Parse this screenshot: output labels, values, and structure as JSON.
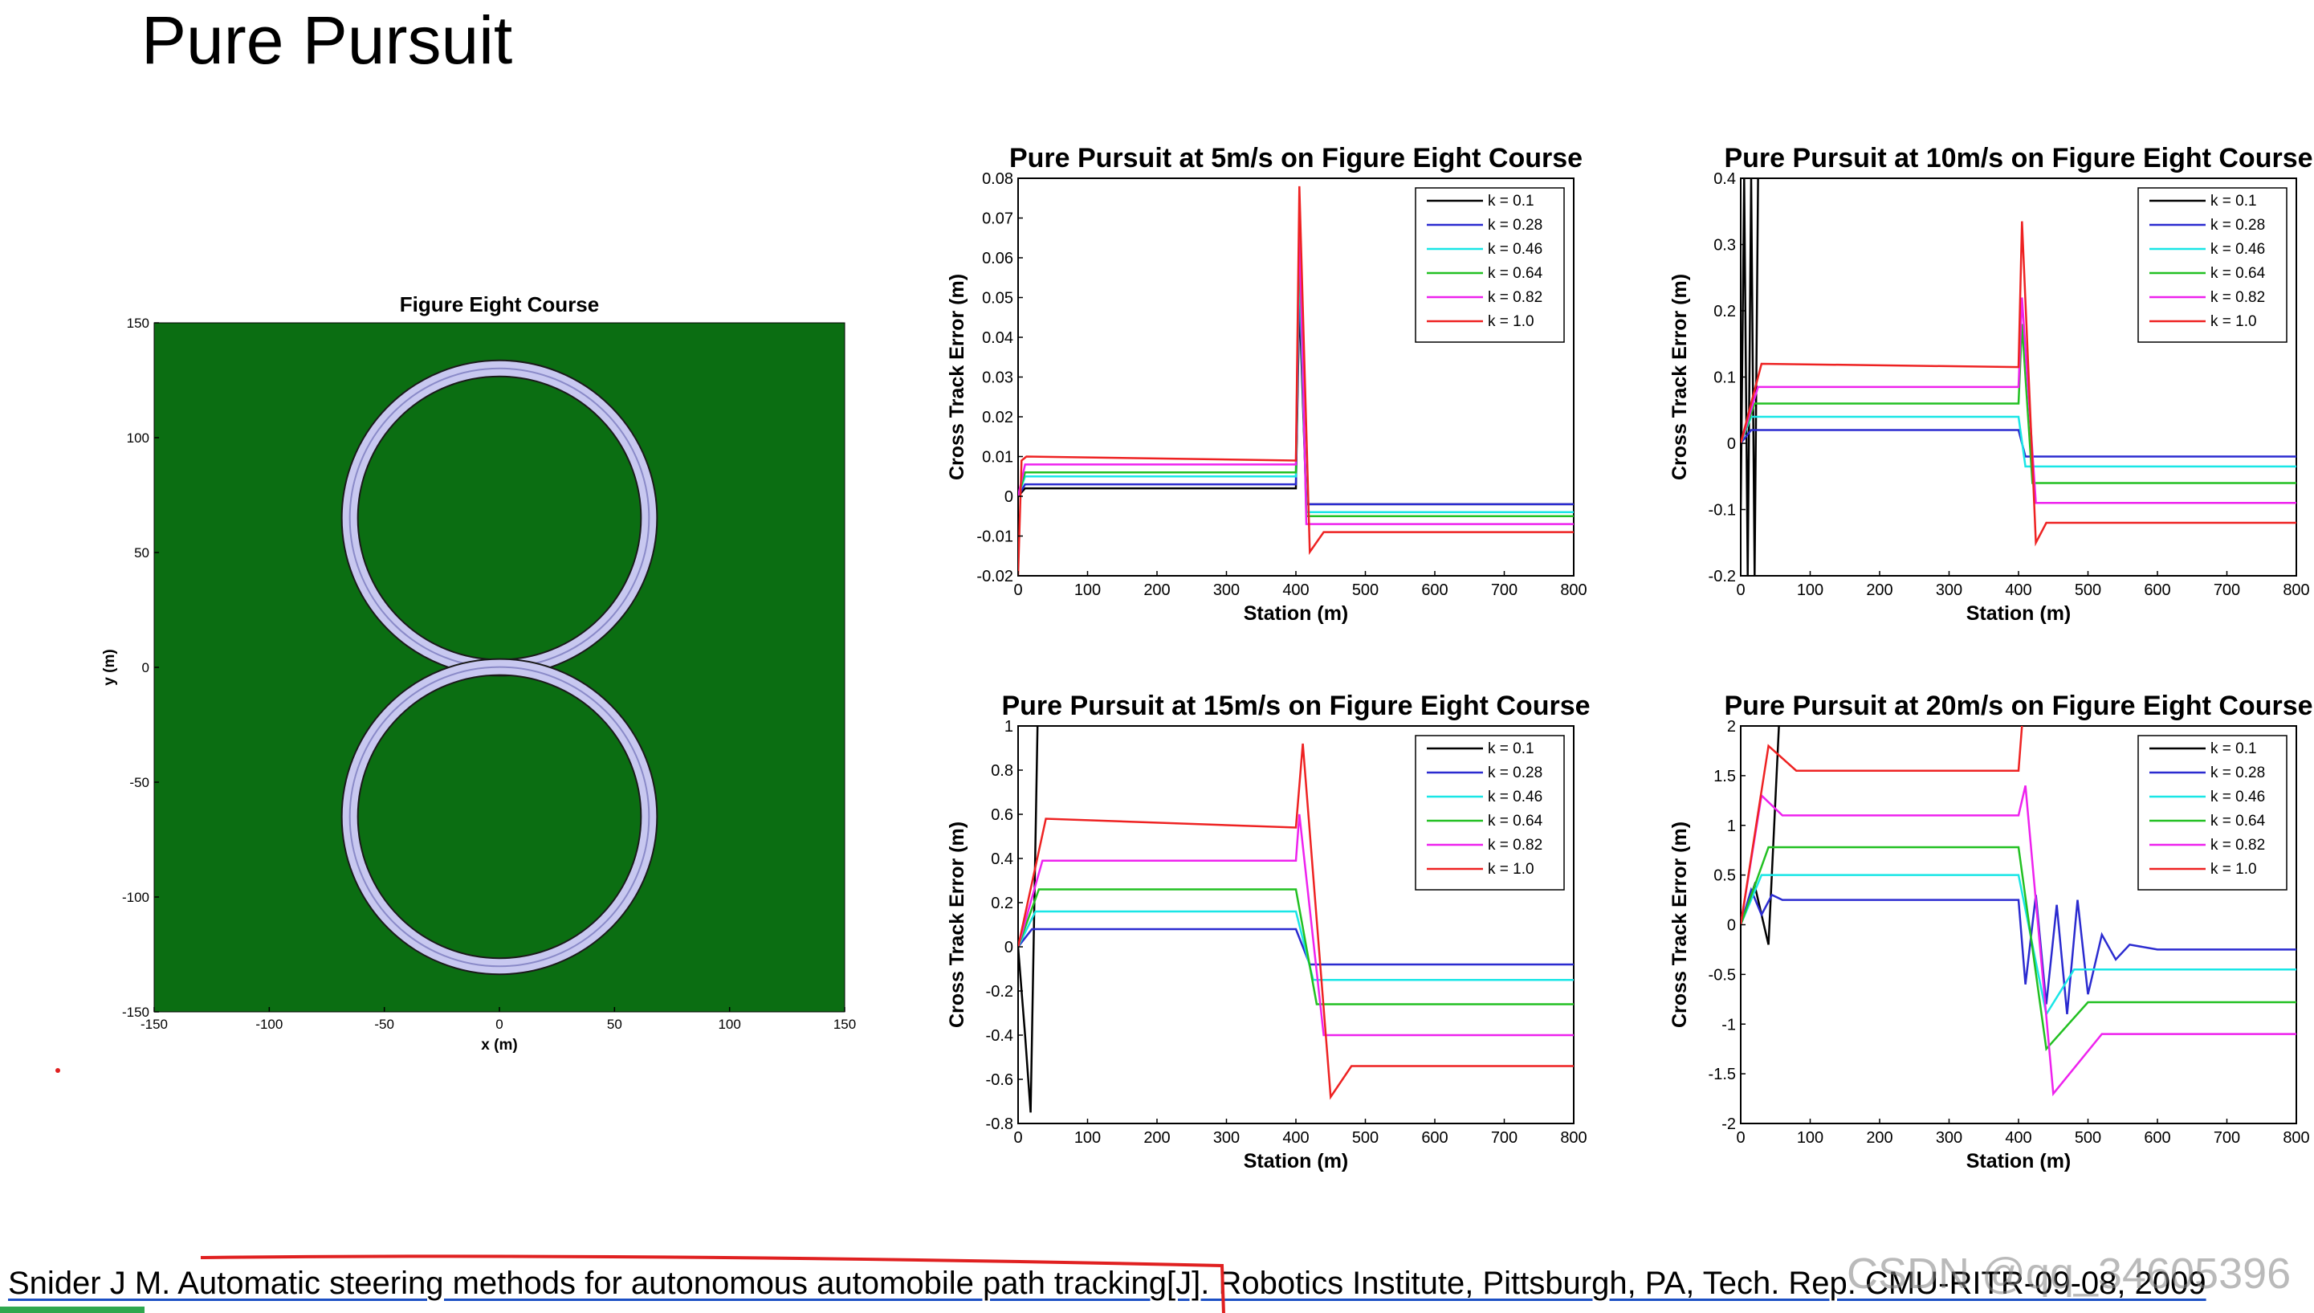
{
  "slide": {
    "title": "Pure Pursuit",
    "citation": "Snider J M. Automatic steering methods for autonomous automobile path tracking[J]. Robotics Institute, Pittsburgh, PA, Tech. Rep. CMU-RITR-09-08, 2009",
    "watermark": "CSDN @qq_34605396"
  },
  "colors": {
    "k0.1": "#000000",
    "k0.28": "#2b2bd0",
    "k0.46": "#19e6e6",
    "k0.64": "#22c022",
    "k0.82": "#ee22ee",
    "k1.0": "#ee2222",
    "track_field": "#0b6e12",
    "track_road": "#c8c8f0"
  },
  "chart_data": [
    {
      "id": "course",
      "type": "scatter",
      "title": "Figure Eight Course",
      "xlabel": "x (m)",
      "ylabel": "y (m)",
      "xlim": [
        -150,
        150
      ],
      "ylim": [
        -150,
        150
      ],
      "xticks": [
        -150,
        -100,
        -50,
        0,
        50,
        100,
        150
      ],
      "yticks": [
        -150,
        -100,
        -50,
        0,
        50,
        100,
        150
      ],
      "grid": false,
      "figure_eight": {
        "loops": [
          {
            "cx": 0,
            "cy": 65,
            "r": 65
          },
          {
            "cx": 0,
            "cy": -65,
            "r": 65
          }
        ]
      }
    },
    {
      "id": "c5",
      "type": "line",
      "title": "Pure Pursuit at 5m/s on Figure Eight Course",
      "xlabel": "Station (m)",
      "ylabel": "Cross Track Error (m)",
      "xlim": [
        0,
        800
      ],
      "ylim": [
        -0.02,
        0.08
      ],
      "xticks": [
        0,
        100,
        200,
        300,
        400,
        500,
        600,
        700,
        800
      ],
      "yticks": [
        -0.02,
        -0.01,
        0,
        0.01,
        0.02,
        0.03,
        0.04,
        0.05,
        0.06,
        0.07,
        0.08
      ],
      "legend": "top-right",
      "series": [
        {
          "name": "k = 0.1",
          "color": "#000000",
          "x": [
            0,
            10,
            400,
            405,
            415,
            800
          ],
          "y": [
            0,
            0.002,
            0.002,
            0.05,
            -0.002,
            -0.002
          ]
        },
        {
          "name": "k = 0.28",
          "color": "#2b2bd0",
          "x": [
            0,
            10,
            400,
            405,
            415,
            800
          ],
          "y": [
            0,
            0.003,
            0.003,
            0.055,
            -0.002,
            -0.002
          ]
        },
        {
          "name": "k = 0.46",
          "color": "#19e6e6",
          "x": [
            0,
            10,
            400,
            405,
            415,
            800
          ],
          "y": [
            0,
            0.005,
            0.005,
            0.06,
            -0.004,
            -0.004
          ]
        },
        {
          "name": "k = 0.64",
          "color": "#22c022",
          "x": [
            0,
            10,
            400,
            405,
            415,
            800
          ],
          "y": [
            0,
            0.006,
            0.006,
            0.065,
            -0.005,
            -0.005
          ]
        },
        {
          "name": "k = 0.82",
          "color": "#ee22ee",
          "x": [
            0,
            10,
            400,
            405,
            415,
            800
          ],
          "y": [
            0,
            0.008,
            0.008,
            0.07,
            -0.007,
            -0.007
          ]
        },
        {
          "name": "k = 1.0",
          "color": "#ee2222",
          "x": [
            0,
            5,
            12,
            400,
            405,
            420,
            440,
            800
          ],
          "y": [
            -0.02,
            0.009,
            0.01,
            0.009,
            0.078,
            -0.014,
            -0.009,
            -0.009
          ]
        }
      ]
    },
    {
      "id": "c10",
      "type": "line",
      "title": "Pure Pursuit at 10m/s on Figure Eight Course",
      "xlabel": "Station (m)",
      "ylabel": "Cross Track Error (m)",
      "xlim": [
        0,
        800
      ],
      "ylim": [
        -0.2,
        0.4
      ],
      "xticks": [
        0,
        100,
        200,
        300,
        400,
        500,
        600,
        700,
        800
      ],
      "yticks": [
        -0.2,
        -0.1,
        0,
        0.1,
        0.2,
        0.3,
        0.4
      ],
      "legend": "top-right",
      "series": [
        {
          "name": "k = 0.1",
          "color": "#000000",
          "x": [
            0,
            5,
            10,
            15,
            20,
            25
          ],
          "y": [
            -0.1,
            0.4,
            -0.2,
            0.4,
            -0.2,
            0.4
          ]
        },
        {
          "name": "k = 0.28",
          "color": "#2b2bd0",
          "x": [
            0,
            15,
            400,
            410,
            800
          ],
          "y": [
            0,
            0.02,
            0.02,
            -0.02,
            -0.02
          ]
        },
        {
          "name": "k = 0.46",
          "color": "#19e6e6",
          "x": [
            0,
            15,
            400,
            410,
            800
          ],
          "y": [
            0,
            0.04,
            0.04,
            -0.035,
            -0.035
          ]
        },
        {
          "name": "k = 0.64",
          "color": "#22c022",
          "x": [
            0,
            20,
            400,
            405,
            420,
            800
          ],
          "y": [
            0,
            0.06,
            0.06,
            0.18,
            -0.06,
            -0.06
          ]
        },
        {
          "name": "k = 0.82",
          "color": "#ee22ee",
          "x": [
            0,
            25,
            400,
            405,
            425,
            800
          ],
          "y": [
            0,
            0.085,
            0.085,
            0.22,
            -0.09,
            -0.09
          ]
        },
        {
          "name": "k = 1.0",
          "color": "#ee2222",
          "x": [
            0,
            30,
            400,
            405,
            425,
            440,
            800
          ],
          "y": [
            0,
            0.12,
            0.115,
            0.335,
            -0.15,
            -0.12,
            -0.12
          ]
        }
      ]
    },
    {
      "id": "c15",
      "type": "line",
      "title": "Pure Pursuit at 15m/s on Figure Eight Course",
      "xlabel": "Station (m)",
      "ylabel": "Cross Track Error (m)",
      "xlim": [
        0,
        800
      ],
      "ylim": [
        -0.8,
        1
      ],
      "xticks": [
        0,
        100,
        200,
        300,
        400,
        500,
        600,
        700,
        800
      ],
      "yticks": [
        -0.8,
        -0.6,
        -0.4,
        -0.2,
        0,
        0.2,
        0.4,
        0.6,
        0.8,
        1
      ],
      "legend": "top-right",
      "series": [
        {
          "name": "k = 0.1",
          "color": "#000000",
          "x": [
            0,
            10,
            18,
            28
          ],
          "y": [
            0,
            -0.4,
            -0.75,
            1
          ]
        },
        {
          "name": "k = 0.28",
          "color": "#2b2bd0",
          "x": [
            0,
            20,
            400,
            420,
            800
          ],
          "y": [
            0,
            0.08,
            0.08,
            -0.08,
            -0.08
          ]
        },
        {
          "name": "k = 0.46",
          "color": "#19e6e6",
          "x": [
            0,
            25,
            400,
            425,
            800
          ],
          "y": [
            0,
            0.16,
            0.16,
            -0.15,
            -0.15
          ]
        },
        {
          "name": "k = 0.64",
          "color": "#22c022",
          "x": [
            0,
            30,
            400,
            430,
            800
          ],
          "y": [
            0,
            0.26,
            0.26,
            -0.26,
            -0.26
          ]
        },
        {
          "name": "k = 0.82",
          "color": "#ee22ee",
          "x": [
            0,
            35,
            400,
            405,
            440,
            800
          ],
          "y": [
            0,
            0.39,
            0.39,
            0.6,
            -0.4,
            -0.4
          ]
        },
        {
          "name": "k = 1.0",
          "color": "#ee2222",
          "x": [
            0,
            40,
            400,
            410,
            450,
            480,
            800
          ],
          "y": [
            0,
            0.58,
            0.54,
            0.92,
            -0.68,
            -0.54,
            -0.54
          ]
        }
      ]
    },
    {
      "id": "c20",
      "type": "line",
      "title": "Pure Pursuit at 20m/s on Figure Eight Course",
      "xlabel": "Station (m)",
      "ylabel": "Cross Track Error (m)",
      "xlim": [
        0,
        800
      ],
      "ylim": [
        -2,
        2
      ],
      "xticks": [
        0,
        100,
        200,
        300,
        400,
        500,
        600,
        700,
        800
      ],
      "yticks": [
        -2,
        -1.5,
        -1,
        -0.5,
        0,
        0.5,
        1,
        1.5,
        2
      ],
      "legend": "top-right",
      "series": [
        {
          "name": "k = 0.1",
          "color": "#000000",
          "x": [
            0,
            20,
            40,
            55
          ],
          "y": [
            0,
            0.4,
            -0.2,
            2
          ]
        },
        {
          "name": "k = 0.28",
          "color": "#2b2bd0",
          "x": [
            0,
            15,
            30,
            45,
            60,
            400,
            410,
            425,
            440,
            455,
            470,
            485,
            500,
            520,
            540,
            560,
            600,
            800
          ],
          "y": [
            0,
            0.35,
            0.1,
            0.3,
            0.25,
            0.25,
            -0.6,
            0.3,
            -0.8,
            0.2,
            -0.9,
            0.25,
            -0.7,
            -0.1,
            -0.35,
            -0.2,
            -0.25,
            -0.25
          ]
        },
        {
          "name": "k = 0.46",
          "color": "#19e6e6",
          "x": [
            0,
            30,
            400,
            440,
            480,
            800
          ],
          "y": [
            0,
            0.5,
            0.5,
            -0.9,
            -0.45,
            -0.45
          ]
        },
        {
          "name": "k = 0.64",
          "color": "#22c022",
          "x": [
            0,
            40,
            400,
            440,
            500,
            800
          ],
          "y": [
            0,
            0.78,
            0.78,
            -1.25,
            -0.78,
            -0.78
          ]
        },
        {
          "name": "k = 0.82",
          "color": "#ee22ee",
          "x": [
            0,
            30,
            60,
            400,
            410,
            450,
            520,
            800
          ],
          "y": [
            0,
            1.3,
            1.1,
            1.1,
            1.4,
            -1.7,
            -1.1,
            -1.1
          ]
        },
        {
          "name": "k = 1.0",
          "color": "#ee2222",
          "x": [
            0,
            40,
            80,
            400,
            405
          ],
          "y": [
            0,
            1.8,
            1.55,
            1.55,
            2
          ]
        }
      ]
    }
  ]
}
